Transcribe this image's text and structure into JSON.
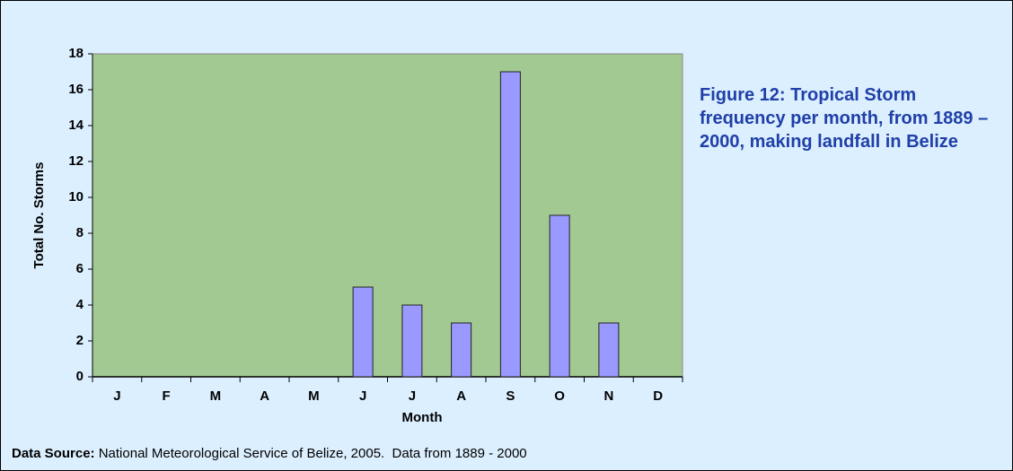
{
  "chart_data": {
    "type": "bar",
    "title": "Figure 12: Tropical Storm frequency per month, from 1889 – 2000, making landfall in Belize",
    "x_label": "Month",
    "y_label": "Total No. Storms",
    "categories": [
      "J",
      "F",
      "M",
      "A",
      "M",
      "J",
      "J",
      "A",
      "S",
      "O",
      "N",
      "D"
    ],
    "values": [
      0,
      0,
      0,
      0,
      0,
      5,
      4,
      3,
      17,
      9,
      3,
      0
    ],
    "color": "#9999ff",
    "ylim": [
      0,
      18
    ],
    "yticks": [
      0,
      2,
      4,
      6,
      8,
      10,
      12,
      14,
      16,
      18
    ],
    "grid": false,
    "source_label": "Data Source:",
    "source_text": "National Meteorological Service of Belize, 2005.  Data from 1889 - 2000"
  }
}
